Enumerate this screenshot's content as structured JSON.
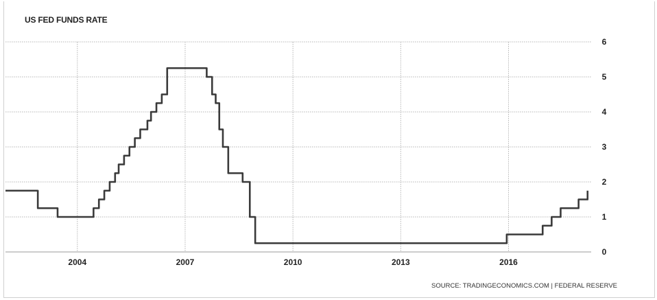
{
  "chart_data": {
    "type": "line",
    "title": "US FED FUNDS RATE",
    "xlabel": "",
    "ylabel": "",
    "source": "SOURCE: TRADINGECONOMICS.COM | FEDERAL RESERVE",
    "x_ticks": [
      "2004",
      "2007",
      "2010",
      "2013",
      "2016"
    ],
    "y_ticks": [
      "0",
      "1",
      "2",
      "3",
      "4",
      "5",
      "6"
    ],
    "xlim": [
      2002.0,
      2018.3
    ],
    "ylim": [
      0,
      6
    ],
    "grid": true,
    "series": [
      {
        "color": "#3a3a3a",
        "x": [
          2002.0,
          2002.9,
          2002.9,
          2003.45,
          2003.45,
          2004.45,
          2004.45,
          2004.6,
          2004.6,
          2004.75,
          2004.75,
          2004.9,
          2004.9,
          2005.05,
          2005.05,
          2005.15,
          2005.15,
          2005.3,
          2005.3,
          2005.45,
          2005.45,
          2005.6,
          2005.6,
          2005.75,
          2005.75,
          2005.95,
          2005.95,
          2006.05,
          2006.05,
          2006.2,
          2006.2,
          2006.35,
          2006.35,
          2006.5,
          2006.5,
          2007.6,
          2007.6,
          2007.75,
          2007.75,
          2007.85,
          2007.85,
          2007.95,
          2007.95,
          2008.05,
          2008.05,
          2008.2,
          2008.2,
          2008.6,
          2008.6,
          2008.8,
          2008.8,
          2008.95,
          2008.95,
          2015.95,
          2015.95,
          2016.95,
          2016.95,
          2017.2,
          2017.2,
          2017.45,
          2017.45,
          2017.95,
          2017.95,
          2018.2,
          2018.2
        ],
        "y": [
          1.75,
          1.75,
          1.25,
          1.25,
          1.0,
          1.0,
          1.25,
          1.25,
          1.5,
          1.5,
          1.75,
          1.75,
          2.0,
          2.0,
          2.25,
          2.25,
          2.5,
          2.5,
          2.75,
          2.75,
          3.0,
          3.0,
          3.25,
          3.25,
          3.5,
          3.5,
          3.75,
          3.75,
          4.0,
          4.0,
          4.25,
          4.25,
          4.5,
          4.5,
          5.25,
          5.25,
          5.0,
          5.0,
          4.5,
          4.5,
          4.25,
          4.25,
          3.5,
          3.5,
          3.0,
          3.0,
          2.25,
          2.25,
          2.0,
          2.0,
          1.0,
          1.0,
          0.25,
          0.25,
          0.5,
          0.5,
          0.75,
          0.75,
          1.0,
          1.0,
          1.25,
          1.25,
          1.5,
          1.5,
          1.75
        ]
      }
    ]
  }
}
